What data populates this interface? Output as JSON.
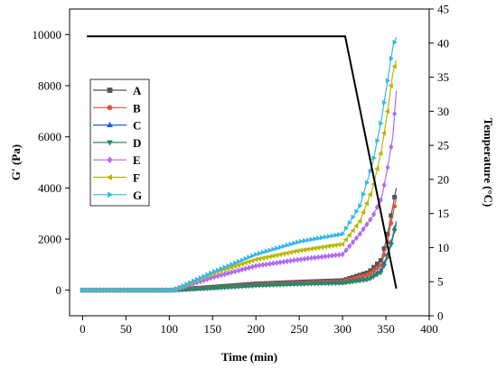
{
  "chart_data": {
    "type": "line",
    "xlabel": "Time (min)",
    "ylabel": "G′ (Pa)",
    "y2label": "Temperature (°C)",
    "xlim": [
      -15,
      400
    ],
    "ylim": [
      -1000,
      11000
    ],
    "y2lim": [
      0,
      45
    ],
    "xticks": [
      0,
      50,
      100,
      150,
      200,
      250,
      300,
      350,
      400
    ],
    "yticks": [
      0,
      2000,
      4000,
      6000,
      8000,
      10000
    ],
    "y2ticks": [
      0,
      5,
      10,
      15,
      20,
      25,
      30,
      35,
      40,
      45
    ],
    "grid": false,
    "legend": "upper-left",
    "temperature": {
      "x": [
        5,
        303,
        362
      ],
      "y": [
        41,
        41,
        4
      ]
    },
    "series": [
      {
        "name": "A",
        "color": "#555555",
        "marker": "square",
        "x": [
          0,
          100,
          150,
          200,
          250,
          300,
          330,
          345,
          352,
          357,
          362
        ],
        "y": [
          0,
          0,
          120,
          250,
          320,
          380,
          700,
          1200,
          2200,
          3100,
          4000
        ]
      },
      {
        "name": "B",
        "color": "#e0553a",
        "marker": "circle",
        "x": [
          0,
          100,
          150,
          200,
          250,
          300,
          330,
          345,
          352,
          357,
          362
        ],
        "y": [
          0,
          0,
          100,
          220,
          290,
          340,
          600,
          1000,
          1900,
          2800,
          3600
        ]
      },
      {
        "name": "C",
        "color": "#1f5fd8",
        "marker": "triangle-up",
        "x": [
          0,
          100,
          150,
          200,
          250,
          300,
          330,
          345,
          352,
          357,
          362
        ],
        "y": [
          0,
          0,
          90,
          200,
          260,
          300,
          450,
          800,
          1400,
          2000,
          2700
        ]
      },
      {
        "name": "D",
        "color": "#2e8b57",
        "marker": "triangle-down",
        "x": [
          0,
          100,
          150,
          200,
          250,
          300,
          330,
          345,
          352,
          357,
          362
        ],
        "y": [
          0,
          0,
          80,
          180,
          240,
          280,
          420,
          700,
          1300,
          1900,
          2600
        ]
      },
      {
        "name": "E",
        "color": "#b26bf0",
        "marker": "diamond",
        "x": [
          0,
          105,
          150,
          200,
          250,
          300,
          320,
          335,
          345,
          352,
          358,
          362
        ],
        "y": [
          0,
          0,
          500,
          950,
          1200,
          1400,
          2200,
          2900,
          3600,
          4800,
          6000,
          7800
        ]
      },
      {
        "name": "F",
        "color": "#b8b800",
        "marker": "triangle-left",
        "x": [
          0,
          105,
          150,
          200,
          250,
          300,
          320,
          335,
          345,
          352,
          358,
          362
        ],
        "y": [
          0,
          0,
          650,
          1200,
          1550,
          1800,
          2700,
          4000,
          5500,
          7000,
          8500,
          9000
        ]
      },
      {
        "name": "G",
        "color": "#36b8e8",
        "marker": "triangle-right",
        "x": [
          0,
          105,
          150,
          200,
          250,
          300,
          320,
          335,
          345,
          352,
          358,
          362
        ],
        "y": [
          0,
          0,
          700,
          1400,
          1900,
          2200,
          3300,
          5000,
          6700,
          8200,
          9500,
          9900
        ]
      }
    ]
  }
}
